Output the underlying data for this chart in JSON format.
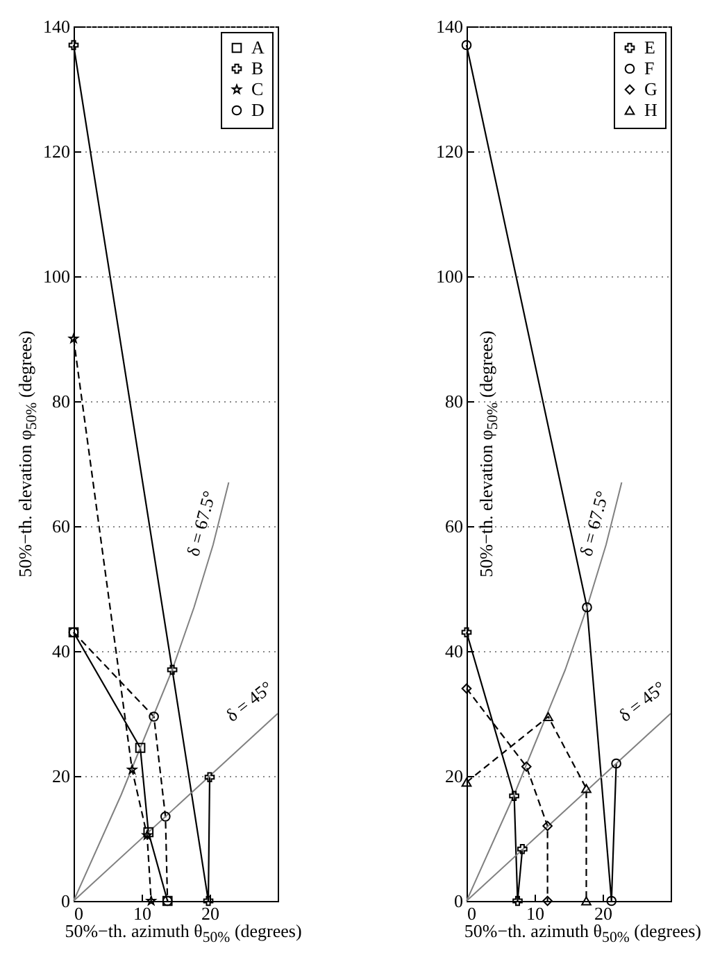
{
  "chart_data": [
    {
      "type": "line",
      "xlabel": "50%−th. azimuth θ$_{50%}$ (degrees)",
      "ylabel": "50%−th. elevation φ$_{50%}$ (degrees)",
      "xlim": [
        0,
        30
      ],
      "xticks": [
        0,
        10,
        20
      ],
      "ylim": [
        0,
        140
      ],
      "yticks": [
        0,
        20,
        40,
        60,
        80,
        100,
        120,
        140
      ],
      "grid": "y",
      "legend": "top right",
      "series": [
        {
          "name": "A",
          "color": "#000000",
          "marker": "square",
          "line_style": "solid",
          "x": [
            0,
            9.8,
            11,
            13.8
          ],
          "values": [
            43,
            24.5,
            11,
            0
          ]
        },
        {
          "name": "B",
          "color": "#000000",
          "marker": "cross",
          "line_style": "solid",
          "x": [
            0,
            14.5,
            20,
            19.8
          ],
          "values": [
            137,
            37,
            19.8,
            0
          ]
        },
        {
          "name": "C",
          "color": "#000000",
          "marker": "star",
          "line_style": "dashed",
          "x": [
            0,
            8.6,
            10.8,
            11.4
          ],
          "values": [
            90,
            21,
            10.5,
            0
          ]
        },
        {
          "name": "D",
          "color": "#000000",
          "marker": "circle",
          "line_style": "dashed",
          "x": [
            0,
            11.8,
            13.5,
            13.8
          ],
          "values": [
            43,
            29.5,
            13.5,
            0
          ]
        },
        {
          "color": "#808080",
          "marker": "none",
          "line_style": "solid",
          "x": [
            0,
            7,
            9.8,
            14.5,
            17.7,
            20.5,
            22.8
          ],
          "values": [
            0,
            17,
            24.5,
            37,
            47,
            57,
            67
          ]
        },
        {
          "color": "#808080",
          "marker": "none",
          "line_style": "solid",
          "x": [
            0,
            30
          ],
          "values": [
            0,
            30
          ]
        }
      ],
      "annotations": [
        "δ = 67.5°",
        "δ = 45°"
      ]
    },
    {
      "type": "line",
      "xlabel": "50%−th. azimuth θ$_{50%}$ (degrees)",
      "ylabel": "50%−th. elevation φ$_{50%}$ (degrees)",
      "xlim": [
        0,
        30
      ],
      "xticks": [
        0,
        10,
        20
      ],
      "ylim": [
        0,
        140
      ],
      "yticks": [
        0,
        20,
        40,
        60,
        80,
        100,
        120,
        140
      ],
      "grid": "y",
      "legend": "top right",
      "series": [
        {
          "name": "E",
          "color": "#000000",
          "marker": "cross",
          "line_style": "solid",
          "x": [
            0,
            7,
            8.2,
            7.5
          ],
          "values": [
            43,
            16.8,
            8.3,
            0
          ]
        },
        {
          "name": "F",
          "color": "#000000",
          "marker": "circle",
          "line_style": "solid",
          "x": [
            0,
            17.7,
            22,
            21.3
          ],
          "values": [
            137,
            47,
            22,
            0
          ]
        },
        {
          "name": "G",
          "color": "#000000",
          "marker": "diamond",
          "line_style": "dashed",
          "x": [
            0,
            8.8,
            11.9,
            11.9
          ],
          "values": [
            34,
            21.5,
            12,
            0
          ]
        },
        {
          "name": "H",
          "color": "#000000",
          "marker": "triangle",
          "line_style": "dashed",
          "x": [
            0,
            12,
            17.6,
            17.6
          ],
          "values": [
            19,
            29.5,
            18,
            0
          ]
        },
        {
          "color": "#808080",
          "marker": "none",
          "line_style": "solid",
          "x": [
            0,
            7,
            9.8,
            14.5,
            17.7,
            20.5,
            22.8
          ],
          "values": [
            0,
            17,
            24.5,
            37,
            47,
            57,
            67
          ]
        },
        {
          "color": "#808080",
          "marker": "none",
          "line_style": "solid",
          "x": [
            0,
            30
          ],
          "values": [
            0,
            30
          ]
        }
      ],
      "annotations": [
        "δ = 67.5°",
        "δ = 45°"
      ]
    }
  ]
}
